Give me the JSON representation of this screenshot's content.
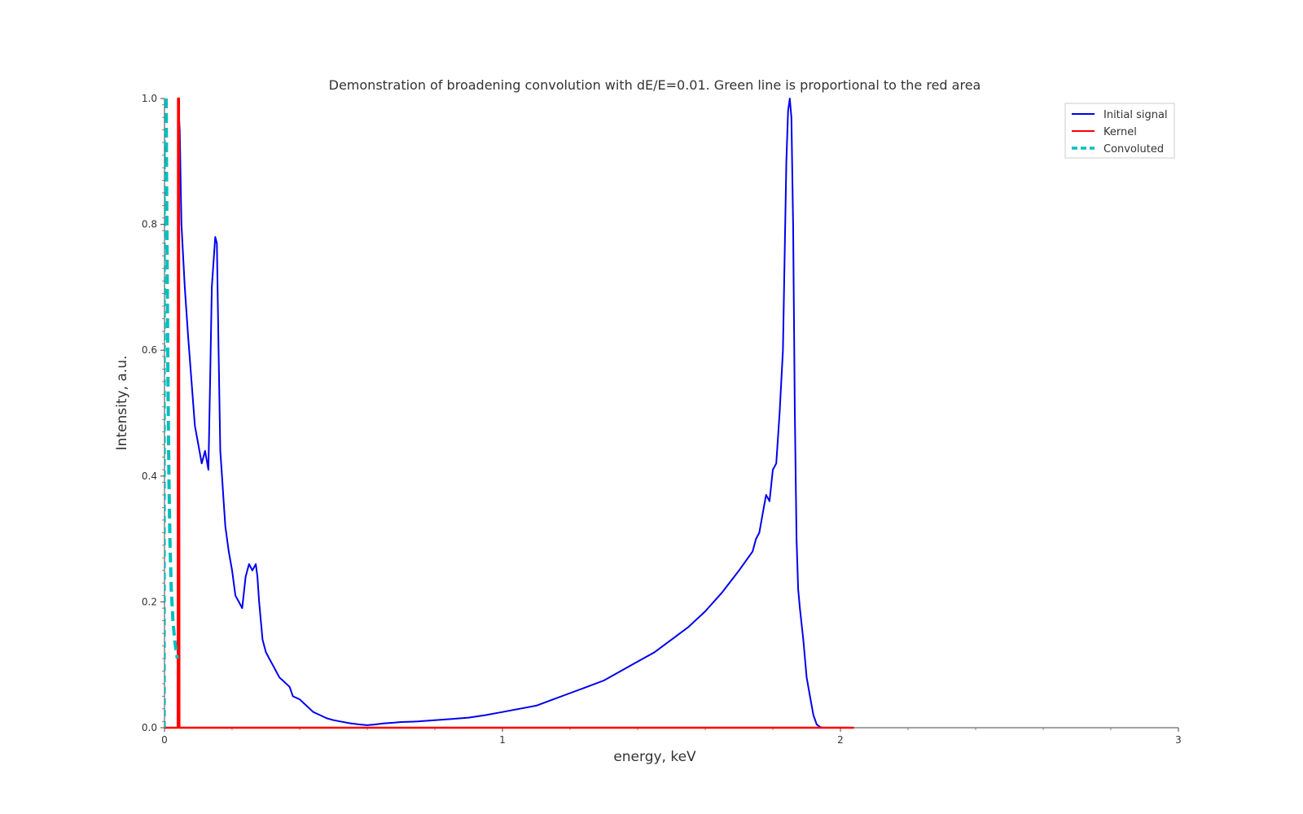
{
  "chart_data": {
    "type": "line",
    "title": "Demonstration of broadening convolution with dE/E=0.01. Green line is proportional to the red area",
    "xlabel": "energy, keV",
    "ylabel": "Intensity, a.u.",
    "xlim": [
      0,
      3
    ],
    "ylim": [
      0,
      1.0
    ],
    "xticks": [
      "0",
      "1",
      "2",
      "3"
    ],
    "yticks": [
      "0.0",
      "0.2",
      "0.4",
      "0.6",
      "0.8",
      "1.0"
    ],
    "grid": false,
    "legend_position": "top-right",
    "series": [
      {
        "name": "Initial signal",
        "color": "#0000ee",
        "style": "solid",
        "x": [
          0.04,
          0.045,
          0.05,
          0.06,
          0.07,
          0.08,
          0.09,
          0.1,
          0.11,
          0.12,
          0.13,
          0.135,
          0.14,
          0.15,
          0.155,
          0.16,
          0.165,
          0.17,
          0.175,
          0.18,
          0.185,
          0.19,
          0.2,
          0.21,
          0.22,
          0.23,
          0.24,
          0.25,
          0.26,
          0.27,
          0.275,
          0.28,
          0.29,
          0.3,
          0.31,
          0.32,
          0.33,
          0.34,
          0.35,
          0.37,
          0.38,
          0.4,
          0.42,
          0.44,
          0.46,
          0.48,
          0.5,
          0.52,
          0.55,
          0.58,
          0.6,
          0.62,
          0.65,
          0.68,
          0.7,
          0.75,
          0.8,
          0.85,
          0.9,
          0.95,
          1.0,
          1.05,
          1.1,
          1.15,
          1.2,
          1.25,
          1.3,
          1.35,
          1.4,
          1.45,
          1.5,
          1.55,
          1.6,
          1.65,
          1.7,
          1.72,
          1.74,
          1.75,
          1.76,
          1.77,
          1.78,
          1.79,
          1.8,
          1.81,
          1.82,
          1.83,
          1.835,
          1.84,
          1.845,
          1.85,
          1.855,
          1.86,
          1.865,
          1.87,
          1.875,
          1.88,
          1.89,
          1.9,
          1.91,
          1.92,
          1.93,
          1.94,
          1.95
        ],
        "y": [
          1.0,
          0.95,
          0.8,
          0.7,
          0.62,
          0.55,
          0.48,
          0.45,
          0.42,
          0.44,
          0.41,
          0.55,
          0.7,
          0.78,
          0.77,
          0.6,
          0.44,
          0.4,
          0.36,
          0.32,
          0.3,
          0.28,
          0.25,
          0.21,
          0.2,
          0.19,
          0.24,
          0.26,
          0.25,
          0.26,
          0.24,
          0.2,
          0.14,
          0.12,
          0.11,
          0.1,
          0.09,
          0.08,
          0.075,
          0.065,
          0.05,
          0.045,
          0.035,
          0.025,
          0.02,
          0.015,
          0.012,
          0.01,
          0.007,
          0.005,
          0.004,
          0.005,
          0.007,
          0.008,
          0.009,
          0.01,
          0.012,
          0.014,
          0.016,
          0.02,
          0.025,
          0.03,
          0.035,
          0.045,
          0.055,
          0.065,
          0.075,
          0.09,
          0.105,
          0.12,
          0.14,
          0.16,
          0.185,
          0.215,
          0.25,
          0.265,
          0.28,
          0.3,
          0.31,
          0.34,
          0.37,
          0.36,
          0.41,
          0.42,
          0.5,
          0.6,
          0.75,
          0.9,
          0.98,
          1.0,
          0.97,
          0.8,
          0.5,
          0.3,
          0.22,
          0.19,
          0.14,
          0.08,
          0.05,
          0.02,
          0.005,
          0.001,
          0.0
        ]
      },
      {
        "name": "Kernel",
        "color": "#ff0000",
        "style": "solid",
        "x": [
          0.0,
          0.039,
          0.04,
          0.043,
          0.044,
          2.04
        ],
        "y": [
          0.0,
          0.0,
          1.0,
          1.0,
          0.0,
          0.0
        ]
      },
      {
        "name": "Convoluted",
        "color": "#00bfbf",
        "style": "dashed",
        "x": [
          0.005,
          0.006,
          0.008,
          0.01,
          0.013,
          0.016,
          0.02,
          0.025,
          0.03,
          0.035,
          0.038
        ],
        "y": [
          1.0,
          0.88,
          0.72,
          0.56,
          0.4,
          0.3,
          0.22,
          0.17,
          0.14,
          0.12,
          0.11
        ]
      },
      {
        "name": "",
        "color": "#00bfbf",
        "style": "thin-dashed",
        "x": [
          0.002,
          0.002
        ],
        "y": [
          0.0,
          0.95
        ]
      }
    ]
  }
}
